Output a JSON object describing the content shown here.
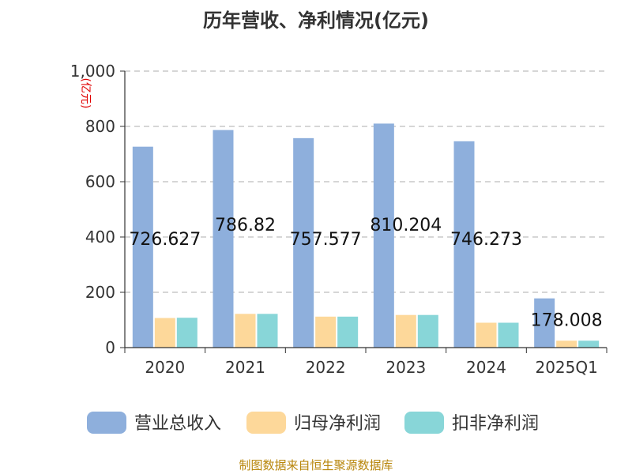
{
  "chart_data": {
    "type": "bar",
    "title": "历年营收、净利情况(亿元)",
    "unit_label": "(亿元)",
    "categories": [
      "2020",
      "2021",
      "2022",
      "2023",
      "2024",
      "2025Q1"
    ],
    "series": [
      {
        "name": "营业总收入",
        "color": "#8eafdc",
        "values": [
          726.627,
          786.82,
          757.577,
          810.204,
          746.273,
          178.008
        ]
      },
      {
        "name": "归母净利润",
        "color": "#fdd89a",
        "values": [
          107,
          122,
          112,
          118,
          90,
          25
        ]
      },
      {
        "name": "扣非净利润",
        "color": "#88d6d8",
        "values": [
          108,
          122,
          112,
          118,
          90,
          25
        ]
      }
    ],
    "data_labels": [
      "726.627",
      "786.82",
      "757.577",
      "810.204",
      "746.273",
      "178.008"
    ],
    "yticks": [
      "0",
      "200",
      "400",
      "600",
      "800",
      "1,000"
    ],
    "ylim": [
      0,
      1000
    ],
    "grid": true,
    "legend_position": "bottom"
  },
  "source": "制图数据来自恒生聚源数据库"
}
